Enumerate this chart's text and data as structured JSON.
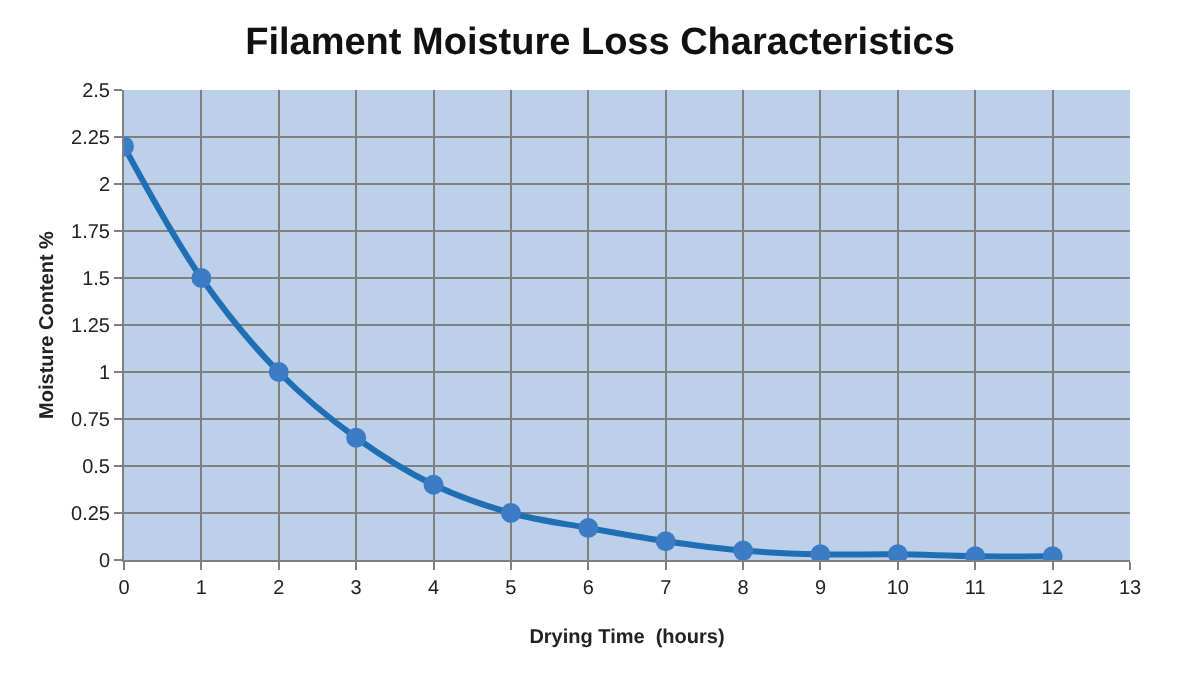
{
  "chart_data": {
    "type": "line",
    "title": "Filament Moisture Loss Characteristics",
    "xlabel": "Drying Time  (hours)",
    "ylabel": "Moisture Content %",
    "x": [
      0,
      1,
      2,
      3,
      4,
      5,
      6,
      7,
      8,
      9,
      10,
      11,
      12
    ],
    "series": [
      {
        "color": "#1f6fb5",
        "values": [
          2.2,
          1.5,
          1.0,
          0.65,
          0.4,
          0.25,
          0.17,
          0.1,
          0.05,
          0.03,
          0.03,
          0.02,
          0.02
        ]
      }
    ],
    "xlim": [
      0,
      13
    ],
    "xticks": [
      0,
      1,
      2,
      3,
      4,
      5,
      6,
      7,
      8,
      9,
      10,
      11,
      12,
      13
    ],
    "ylim": [
      0,
      2.5
    ],
    "yticks": [
      0,
      0.25,
      0.5,
      0.75,
      1,
      1.25,
      1.5,
      1.75,
      2,
      2.25,
      2.5
    ],
    "grid": true,
    "marker": "circle",
    "line_style": "solid"
  }
}
